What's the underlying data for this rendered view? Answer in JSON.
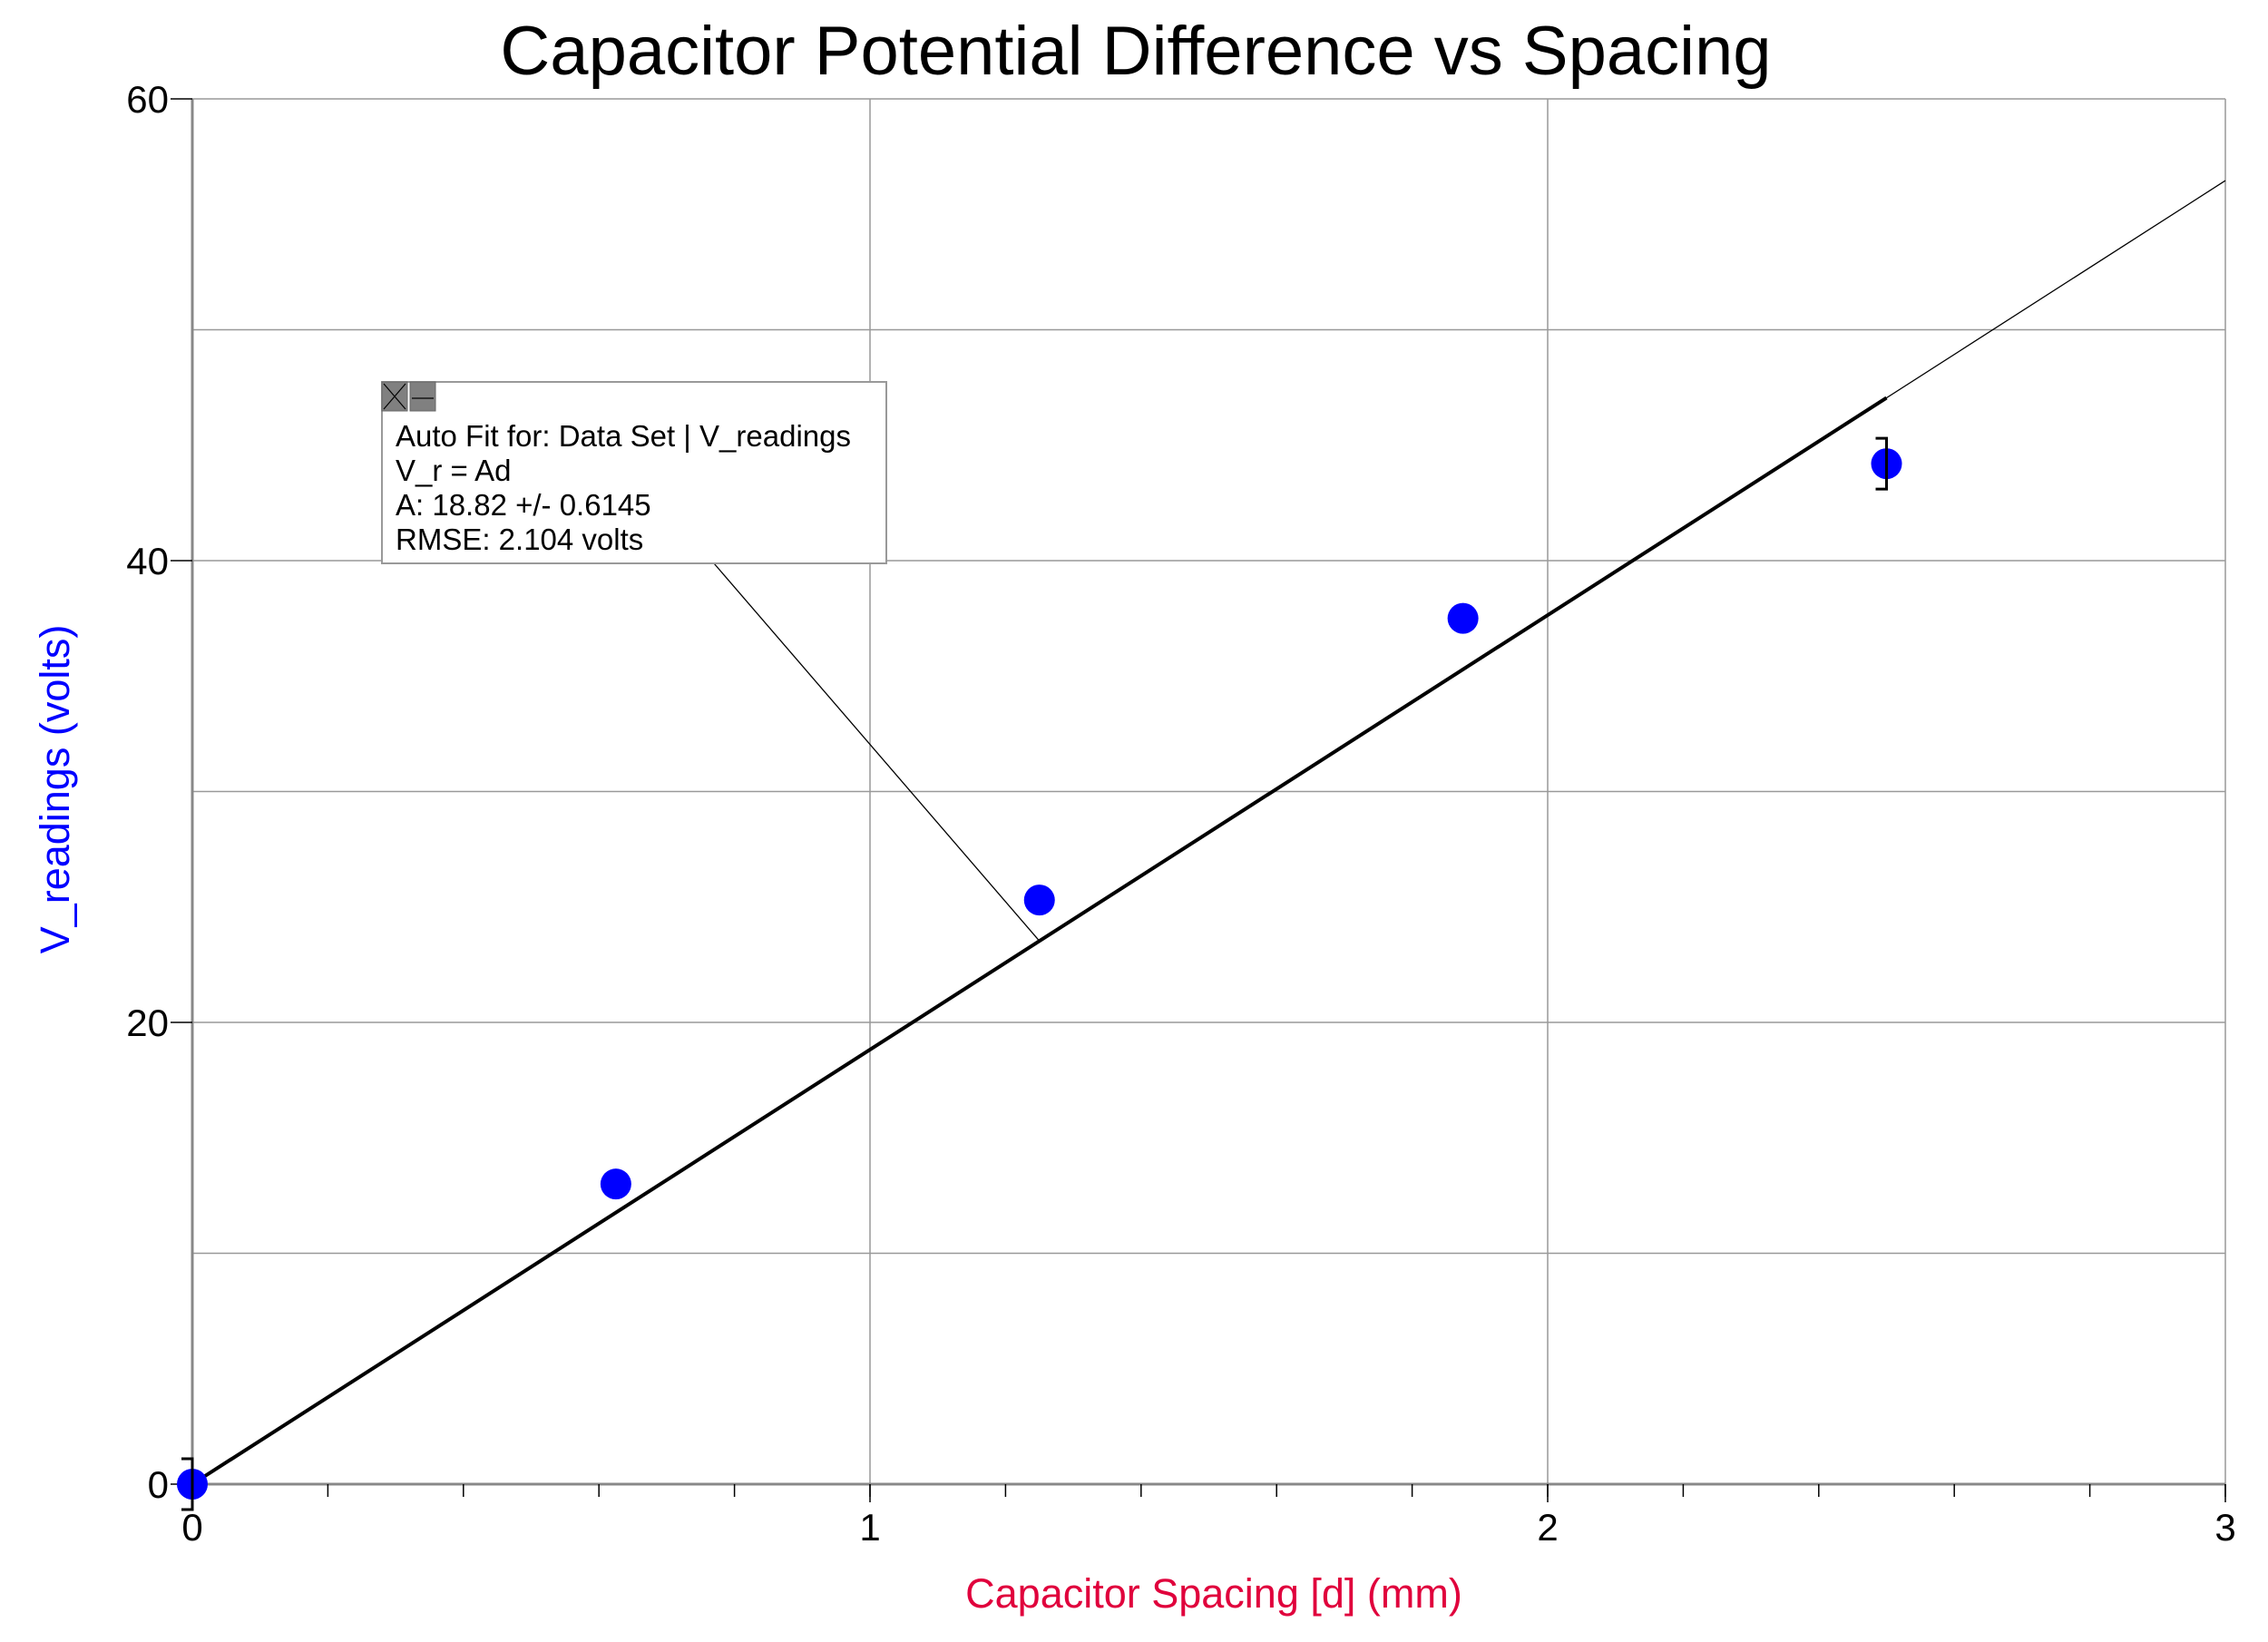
{
  "chart_data": {
    "type": "scatter",
    "title": "Capacitor Potential Difference vs Spacing",
    "xlabel": "Capacitor Spacing [d] (mm)",
    "ylabel": "V_readings (volts)",
    "xlim": [
      0,
      3
    ],
    "ylim": [
      0,
      60
    ],
    "x_ticks": [
      0,
      1,
      2,
      3
    ],
    "x_minor_step": 0.2,
    "y_ticks": [
      0,
      20,
      40,
      60
    ],
    "y_grid_step": 10,
    "grid": true,
    "colors": {
      "points": "#0000ff",
      "fit": "#000000",
      "xlabel": "#e0003c",
      "ylabel": "#0000ff"
    },
    "series": [
      {
        "x": [
          0,
          0.625,
          1.25,
          1.875,
          2.5
        ],
        "y": [
          0,
          13.0,
          25.3,
          37.5,
          44.2
        ],
        "error_bars": [
          1.1,
          null,
          null,
          null,
          1.1
        ]
      }
    ],
    "fit": {
      "model": "V_r = Ad",
      "A": 18.82,
      "fit_range": [
        0,
        2.5
      ],
      "extended_range": [
        0,
        3
      ],
      "annotation": {
        "lines": [
          "Auto Fit for: Data Set | V_readings",
          "V_r = Ad",
          "A: 18.82 +/- 0.6145",
          "RMSE: 2.104 volts"
        ],
        "anchor_x": 1.25,
        "icons": [
          "close-icon",
          "minimize-icon"
        ]
      }
    }
  }
}
